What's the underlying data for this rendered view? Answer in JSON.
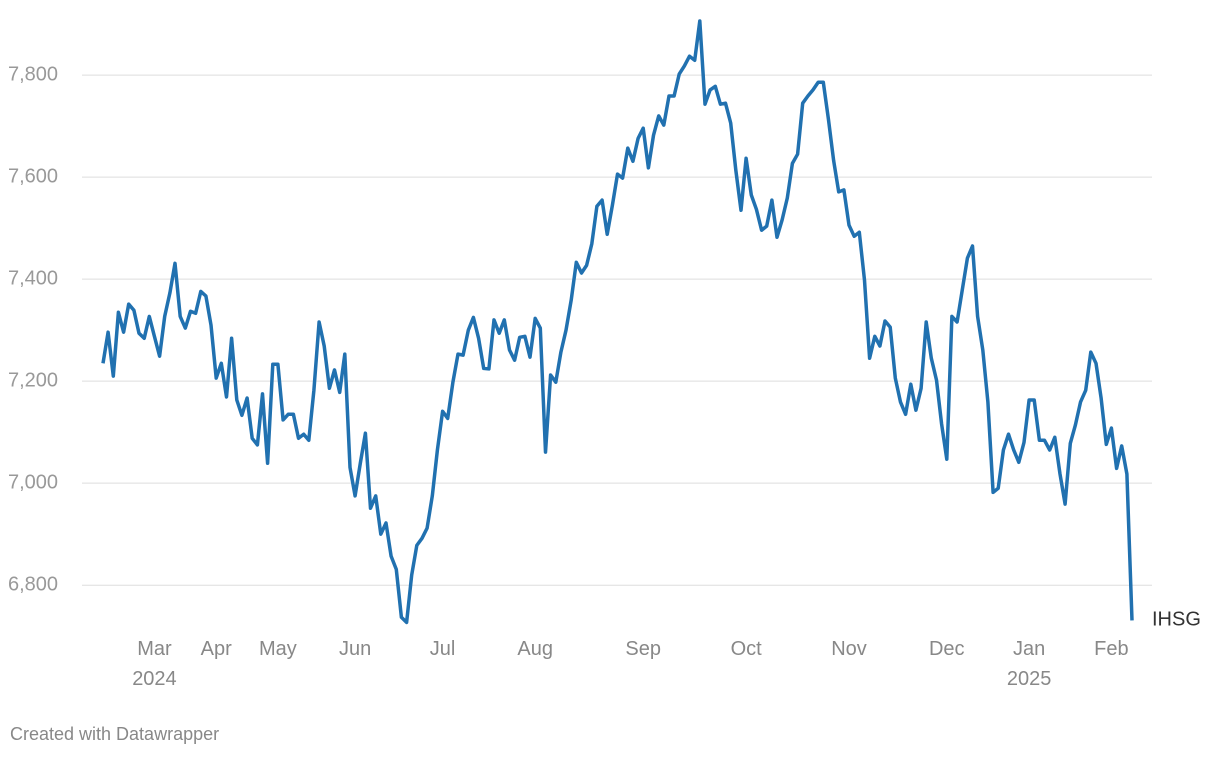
{
  "chart_data": {
    "type": "line",
    "categories": [
      null,
      null,
      null,
      null,
      null,
      null,
      null,
      null,
      null,
      null,
      "Mar\n2024",
      null,
      null,
      null,
      null,
      null,
      null,
      null,
      null,
      null,
      null,
      null,
      "Apr",
      null,
      null,
      null,
      null,
      null,
      null,
      null,
      null,
      null,
      null,
      null,
      "May",
      null,
      null,
      null,
      null,
      null,
      null,
      null,
      null,
      null,
      null,
      null,
      null,
      null,
      null,
      "Jun",
      null,
      null,
      null,
      null,
      null,
      null,
      null,
      null,
      null,
      null,
      null,
      null,
      null,
      null,
      null,
      null,
      "Jul",
      null,
      null,
      null,
      null,
      null,
      null,
      null,
      null,
      null,
      null,
      null,
      null,
      null,
      null,
      null,
      null,
      null,
      "Aug",
      null,
      null,
      null,
      null,
      null,
      null,
      null,
      null,
      null,
      null,
      null,
      null,
      null,
      null,
      null,
      null,
      null,
      null,
      null,
      null,
      "Sep",
      null,
      null,
      null,
      null,
      null,
      null,
      null,
      null,
      null,
      null,
      null,
      null,
      null,
      null,
      null,
      null,
      null,
      null,
      null,
      "Oct",
      null,
      null,
      null,
      null,
      null,
      null,
      null,
      null,
      null,
      null,
      null,
      null,
      null,
      null,
      null,
      null,
      null,
      null,
      null,
      "Nov",
      null,
      null,
      null,
      null,
      null,
      null,
      null,
      null,
      null,
      null,
      null,
      null,
      null,
      null,
      null,
      null,
      null,
      null,
      "Dec",
      null,
      null,
      null,
      null,
      null,
      null,
      null,
      null,
      null,
      null,
      null,
      null,
      null,
      null,
      null,
      "Jan\n2025",
      null,
      null,
      null,
      null,
      null,
      null,
      null,
      null,
      null,
      null,
      null,
      null,
      null,
      null,
      null,
      "Feb",
      null,
      null,
      null,
      null
    ],
    "series": [
      {
        "name": "IHSG",
        "color": "#2171b0",
        "values": [
          7235,
          7296,
          7210,
          7335,
          7296,
          7351,
          7339,
          7294,
          7284,
          7327,
          7288,
          7249,
          7327,
          7373,
          7431,
          7327,
          7304,
          7337,
          7333,
          7376,
          7367,
          7310,
          7206,
          7235,
          7169,
          7284,
          7163,
          7133,
          7167,
          7088,
          7075,
          7175,
          7039,
          7233,
          7233,
          7124,
          7135,
          7135,
          7088,
          7096,
          7084,
          7182,
          7316,
          7269,
          7186,
          7222,
          7178,
          7253,
          7031,
          6975,
          7039,
          7098,
          6951,
          6975,
          6900,
          6922,
          6857,
          6831,
          6737,
          6727,
          6820,
          6878,
          6892,
          6912,
          6975,
          7065,
          7141,
          7127,
          7198,
          7253,
          7251,
          7300,
          7325,
          7284,
          7225,
          7224,
          7320,
          7294,
          7320,
          7261,
          7241,
          7286,
          7288,
          7247,
          7323,
          7304,
          7061,
          7212,
          7198,
          7257,
          7300,
          7359,
          7433,
          7412,
          7427,
          7469,
          7543,
          7555,
          7488,
          7545,
          7606,
          7598,
          7657,
          7631,
          7676,
          7696,
          7618,
          7682,
          7720,
          7702,
          7759,
          7759,
          7802,
          7818,
          7837,
          7829,
          7906,
          7743,
          7771,
          7778,
          7743,
          7745,
          7706,
          7614,
          7535,
          7637,
          7565,
          7537,
          7496,
          7504,
          7555,
          7482,
          7516,
          7559,
          7627,
          7645,
          7745,
          7759,
          7771,
          7786,
          7786,
          7714,
          7633,
          7571,
          7575,
          7506,
          7484,
          7492,
          7398,
          7245,
          7288,
          7269,
          7318,
          7306,
          7206,
          7159,
          7135,
          7194,
          7143,
          7186,
          7316,
          7245,
          7202,
          7116,
          7047,
          7327,
          7316,
          7378,
          7441,
          7465,
          7327,
          7261,
          7159,
          6982,
          6990,
          7065,
          7096,
          7065,
          7041,
          7080,
          7163,
          7163,
          7084,
          7084,
          7065,
          7090,
          7018,
          6959,
          7078,
          7114,
          7159,
          7182,
          7257,
          7235,
          7167,
          7076,
          7108,
          7029,
          7073,
          7018,
          6731
        ]
      }
    ],
    "ylim": [
      6720,
      7910
    ],
    "yticks": [
      {
        "value": 6800,
        "label": "6,800"
      },
      {
        "value": 7000,
        "label": "7,000"
      },
      {
        "value": 7200,
        "label": "7,200"
      },
      {
        "value": 7400,
        "label": "7,400"
      },
      {
        "value": 7600,
        "label": "7,600"
      },
      {
        "value": 7800,
        "label": "7,800"
      }
    ],
    "grid": true,
    "credit": "Created with Datawrapper"
  }
}
